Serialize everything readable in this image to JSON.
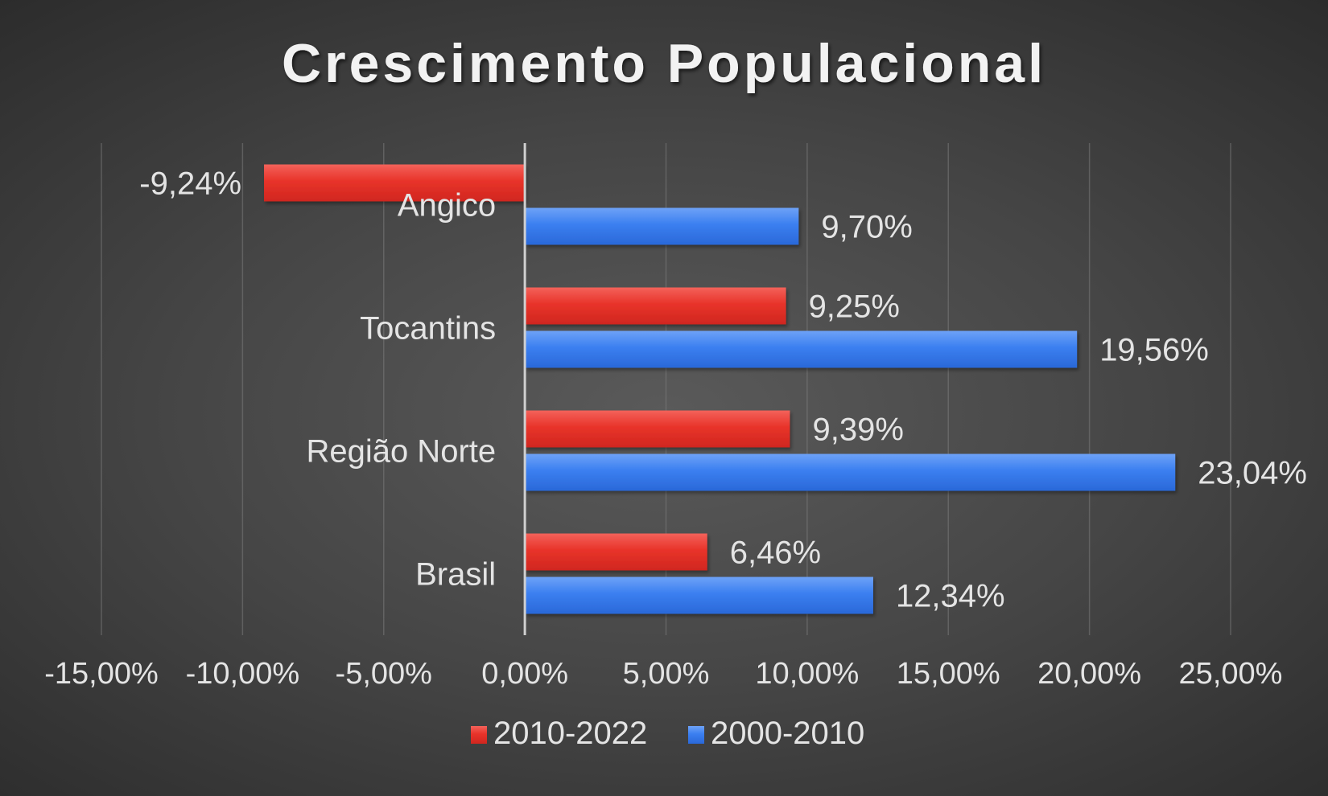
{
  "chart_data": {
    "type": "bar",
    "orientation": "horizontal",
    "title": "Crescimento Populacional",
    "categories": [
      "Angico",
      "Tocantins",
      "Região Norte",
      "Brasil"
    ],
    "series": [
      {
        "name": "2010-2022",
        "color": "#e8332a",
        "values": [
          -9.24,
          9.25,
          9.39,
          6.46
        ],
        "labels": [
          "-9,24%",
          "9,25%",
          "9,39%",
          "6,46%"
        ]
      },
      {
        "name": "2000-2010",
        "color": "#3b7ff0",
        "values": [
          9.7,
          19.56,
          23.04,
          12.34
        ],
        "labels": [
          "9,70%",
          "19,56%",
          "23,04%",
          "12,34%"
        ]
      }
    ],
    "xlim": [
      -15,
      25
    ],
    "xticks": [
      -15,
      -10,
      -5,
      0,
      5,
      10,
      15,
      20,
      25
    ],
    "xtick_labels": [
      "-15,00%",
      "-10,00%",
      "-5,00%",
      "0,00%",
      "5,00%",
      "10,00%",
      "15,00%",
      "20,00%",
      "25,00%"
    ],
    "grid": true,
    "legend_position": "bottom"
  }
}
